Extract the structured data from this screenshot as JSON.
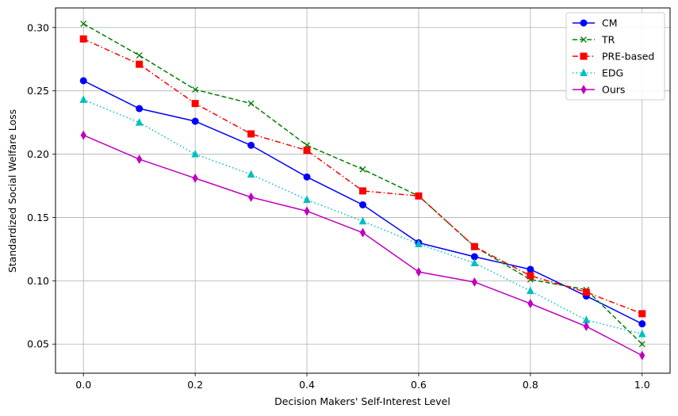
{
  "chart_data": {
    "type": "line",
    "title": "",
    "xlabel": "Decision Makers' Self-Interest Level",
    "ylabel": "Standardized Social Welfare Loss",
    "xlim": [
      -0.05,
      1.05
    ],
    "ylim": [
      0.027,
      0.3155
    ],
    "xticks": [
      0.0,
      0.2,
      0.4,
      0.6,
      0.8,
      1.0
    ],
    "xtick_labels": [
      "0.0",
      "0.2",
      "0.4",
      "0.6",
      "0.8",
      "1.0"
    ],
    "yticks": [
      0.05,
      0.1,
      0.15,
      0.2,
      0.25,
      0.3
    ],
    "ytick_labels": [
      "0.05",
      "0.10",
      "0.15",
      "0.20",
      "0.25",
      "0.30"
    ],
    "grid": true,
    "legend_position": "top-right",
    "x": [
      0.0,
      0.1,
      0.2,
      0.3,
      0.4,
      0.5,
      0.6,
      0.7,
      0.8,
      0.9,
      1.0
    ],
    "series": [
      {
        "name": "CM",
        "color": "#0000ff",
        "dash": "solid",
        "marker": "circle",
        "values": [
          0.258,
          0.236,
          0.226,
          0.207,
          0.182,
          0.16,
          0.13,
          0.119,
          0.109,
          0.088,
          0.066
        ]
      },
      {
        "name": "TR",
        "color": "#008000",
        "dash": "dashed",
        "marker": "x",
        "values": [
          0.303,
          0.278,
          0.251,
          0.24,
          0.207,
          0.188,
          0.167,
          0.127,
          0.101,
          0.093,
          0.05
        ]
      },
      {
        "name": "PRE-based",
        "color": "#ff0000",
        "dash": "dashdot",
        "marker": "square",
        "values": [
          0.291,
          0.271,
          0.24,
          0.216,
          0.203,
          0.171,
          0.167,
          0.127,
          0.104,
          0.091,
          0.074
        ]
      },
      {
        "name": "EDG",
        "color": "#00bfbf",
        "dash": "dotted",
        "marker": "triangle",
        "values": [
          0.243,
          0.225,
          0.2,
          0.184,
          0.164,
          0.147,
          0.129,
          0.114,
          0.092,
          0.069,
          0.058
        ]
      },
      {
        "name": "Ours",
        "color": "#bf00bf",
        "dash": "solid",
        "marker": "diamond",
        "values": [
          0.215,
          0.196,
          0.181,
          0.166,
          0.155,
          0.138,
          0.107,
          0.099,
          0.082,
          0.064,
          0.041
        ]
      }
    ]
  }
}
